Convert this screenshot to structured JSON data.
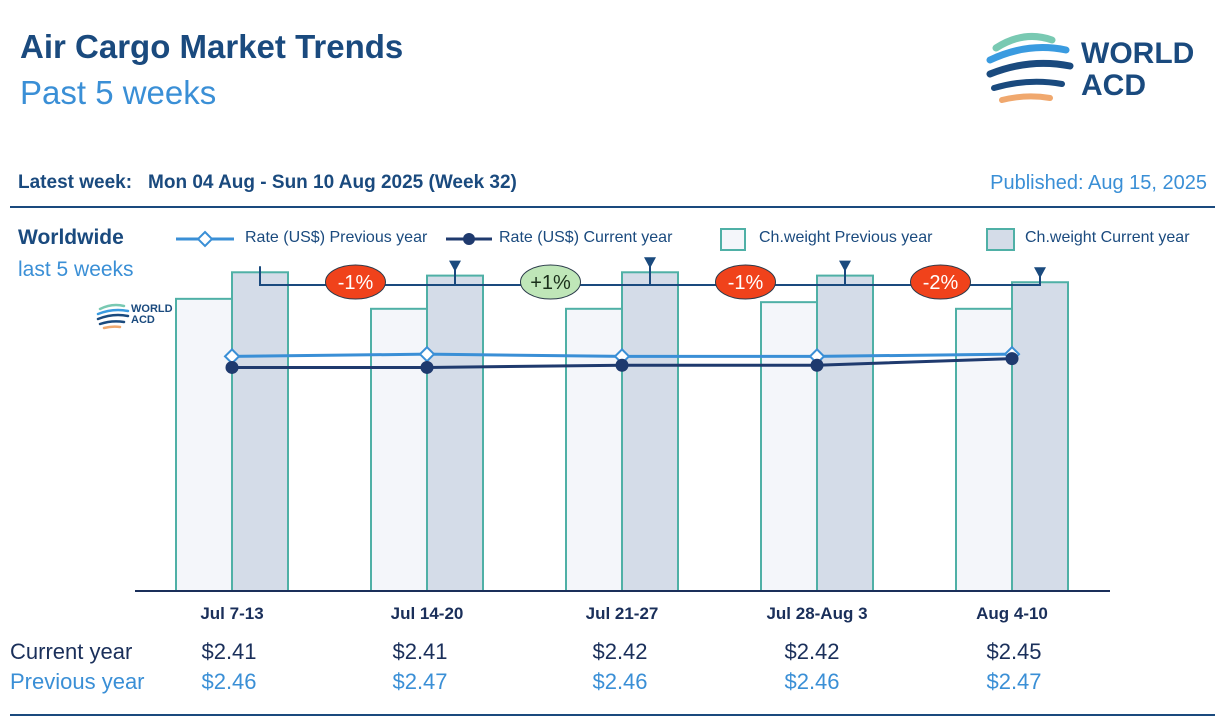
{
  "header": {
    "title": "Air Cargo Market Trends",
    "subtitle": "Past 5 weeks",
    "logo_line1": "WORLD",
    "logo_line2": "ACD"
  },
  "info": {
    "latest_label": "Latest week:",
    "latest_value": "Mon 04 Aug - Sun 10 Aug 2025 (Week 32)",
    "published": "Published: Aug 15, 2025"
  },
  "region": {
    "title": "Worldwide",
    "subtitle": "last 5 weeks"
  },
  "legend": {
    "rate_prev": "Rate (US$) Previous year",
    "rate_cur": "Rate (US$) Current year",
    "cw_prev": "Ch.weight Previous year",
    "cw_cur": "Ch.weight Current year"
  },
  "colors": {
    "navy": "#1a4a7e",
    "rate_prev_line": "#3a8fd6",
    "rate_cur_line": "#1f3a6e",
    "bar_border": "#4fb0a6",
    "bar_prev_fill": "#f4f6fa",
    "bar_cur_fill": "#d4dce8",
    "neg_badge": "#f0421b",
    "pos_badge": "#bfe6b8"
  },
  "chart_data": {
    "type": "bar",
    "categories": [
      "Jul 7-13",
      "Jul 14-20",
      "Jul 21-27",
      "Jul 28-Aug 3",
      "Aug 4-10"
    ],
    "series": [
      {
        "name": "Ch.weight Previous year",
        "kind": "bar",
        "values": [
          88,
          85,
          85,
          87,
          85
        ]
      },
      {
        "name": "Ch.weight Current year",
        "kind": "bar",
        "values": [
          96,
          95,
          96,
          95,
          93
        ]
      },
      {
        "name": "Rate (US$) Previous year",
        "kind": "line",
        "values": [
          2.46,
          2.47,
          2.46,
          2.46,
          2.47
        ]
      },
      {
        "name": "Rate (US$) Current year",
        "kind": "line",
        "values": [
          2.41,
          2.41,
          2.42,
          2.42,
          2.45
        ]
      }
    ],
    "changes": [
      "-1%",
      "+1%",
      "-1%",
      "-2%"
    ],
    "rate_ylim": [
      1.4,
      2.9
    ],
    "bar_ylim": [
      0,
      100
    ]
  },
  "table": {
    "current_label": "Current year",
    "previous_label": "Previous year",
    "current_values": [
      "$2.41",
      "$2.41",
      "$2.42",
      "$2.42",
      "$2.45"
    ],
    "previous_values": [
      "$2.46",
      "$2.47",
      "$2.46",
      "$2.46",
      "$2.47"
    ]
  }
}
